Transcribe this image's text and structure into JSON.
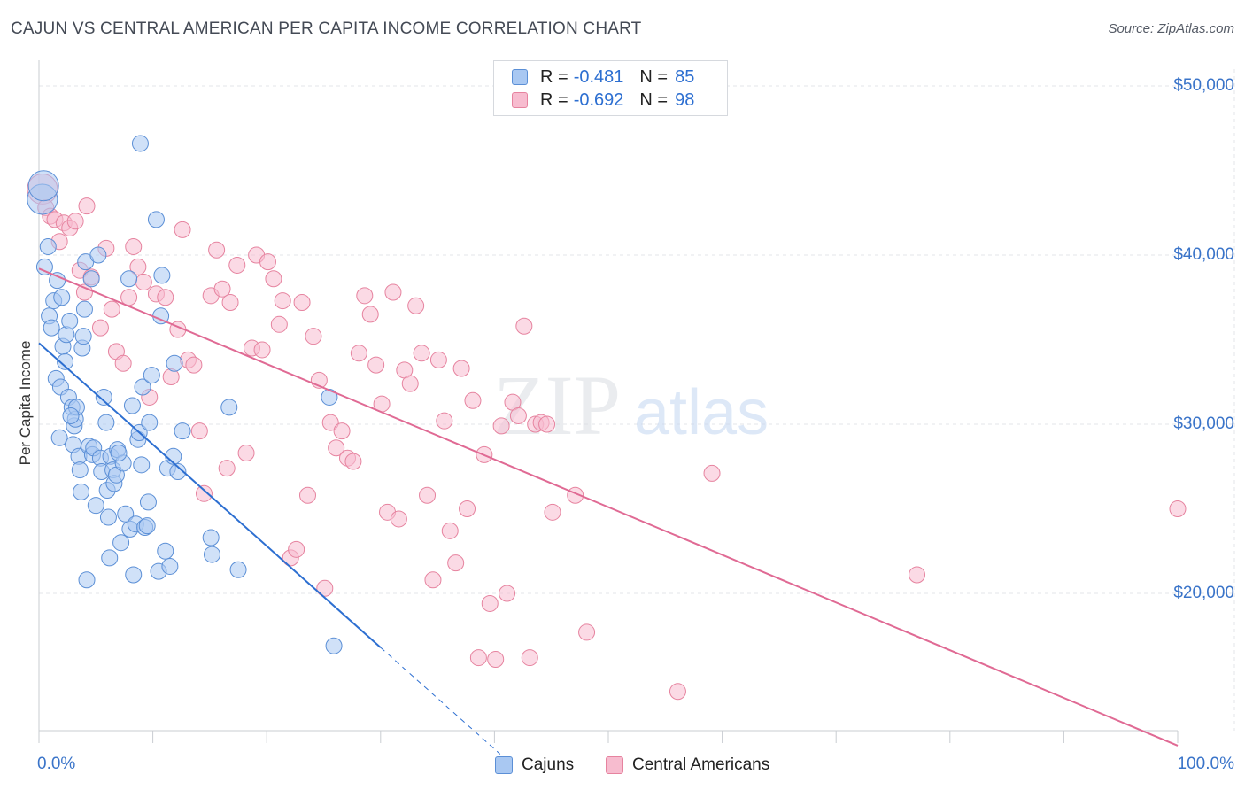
{
  "header": {
    "title": "CAJUN VS CENTRAL AMERICAN PER CAPITA INCOME CORRELATION CHART",
    "source": "Source: ZipAtlas.com"
  },
  "watermark": {
    "zip": "ZIP",
    "atlas": "atlas"
  },
  "colors": {
    "blue_fill": "#a9c8f2",
    "blue_stroke": "#5b8fd6",
    "blue_line": "#2d6fd1",
    "pink_fill": "#f7bccf",
    "pink_stroke": "#e6839f",
    "pink_line": "#e06a94",
    "grid": "#e3e5e8",
    "tick_text": "#3a74c9"
  },
  "legend": {
    "rows": [
      {
        "r_label": "R =",
        "r_value": "-0.481",
        "n_label": "N =",
        "n_value": "85"
      },
      {
        "r_label": "R =",
        "r_value": "-0.692",
        "n_label": "N =",
        "n_value": "98"
      }
    ]
  },
  "bottom_legend": {
    "series0": "Cajuns",
    "series1": "Central Americans"
  },
  "axes": {
    "ylabel": "Per Capita Income",
    "x_ticks": [
      "0.0%",
      "100.0%"
    ],
    "y_ticks": [
      "$50,000",
      "$40,000",
      "$30,000",
      "$20,000"
    ]
  },
  "chart_data": {
    "type": "scatter",
    "title": "CAJUN VS CENTRAL AMERICAN PER CAPITA INCOME CORRELATION CHART",
    "xlabel": "",
    "ylabel": "Per Capita Income",
    "xlim": [
      0,
      100
    ],
    "ylim": [
      10000,
      51000
    ],
    "grid": true,
    "legend_position": "top-center",
    "series": [
      {
        "name": "Cajuns",
        "color": "#5b8fd6",
        "r": -0.481,
        "n": 85,
        "trend": {
          "x0": 0,
          "y0": 34800,
          "x1": 30,
          "y1": 16800,
          "dash_to_x": 40.5
        },
        "points": [
          [
            0.3,
            43300
          ],
          [
            0.4,
            44100
          ],
          [
            0.5,
            39300
          ],
          [
            0.8,
            40500
          ],
          [
            0.9,
            36400
          ],
          [
            1.1,
            35700
          ],
          [
            1.3,
            37300
          ],
          [
            1.5,
            32700
          ],
          [
            1.6,
            38500
          ],
          [
            1.8,
            29200
          ],
          [
            1.9,
            32200
          ],
          [
            2.0,
            37500
          ],
          [
            2.1,
            34600
          ],
          [
            2.3,
            33700
          ],
          [
            2.4,
            35300
          ],
          [
            2.6,
            31600
          ],
          [
            2.7,
            36100
          ],
          [
            2.9,
            31000
          ],
          [
            3.0,
            28800
          ],
          [
            3.1,
            29900
          ],
          [
            3.2,
            30300
          ],
          [
            3.3,
            31000
          ],
          [
            3.5,
            28100
          ],
          [
            3.6,
            27300
          ],
          [
            3.7,
            26000
          ],
          [
            3.8,
            34500
          ],
          [
            3.9,
            35200
          ],
          [
            4.1,
            39600
          ],
          [
            4.2,
            20800
          ],
          [
            4.4,
            28700
          ],
          [
            4.6,
            38600
          ],
          [
            4.7,
            28200
          ],
          [
            4.8,
            28600
          ],
          [
            5.0,
            25200
          ],
          [
            5.2,
            40000
          ],
          [
            5.4,
            28000
          ],
          [
            5.5,
            27200
          ],
          [
            5.7,
            31600
          ],
          [
            5.9,
            30100
          ],
          [
            6.0,
            26100
          ],
          [
            6.2,
            22100
          ],
          [
            6.3,
            28100
          ],
          [
            6.5,
            27300
          ],
          [
            6.6,
            26500
          ],
          [
            6.8,
            27000
          ],
          [
            6.9,
            28500
          ],
          [
            7.2,
            23000
          ],
          [
            7.4,
            27700
          ],
          [
            7.6,
            24700
          ],
          [
            7.9,
            38600
          ],
          [
            8.0,
            23800
          ],
          [
            8.2,
            31100
          ],
          [
            8.3,
            21100
          ],
          [
            8.5,
            24100
          ],
          [
            8.7,
            29100
          ],
          [
            8.8,
            29500
          ],
          [
            8.9,
            46600
          ],
          [
            9.1,
            32200
          ],
          [
            9.3,
            23900
          ],
          [
            9.5,
            24000
          ],
          [
            9.6,
            25400
          ],
          [
            9.7,
            30100
          ],
          [
            9.9,
            32900
          ],
          [
            10.3,
            42100
          ],
          [
            10.5,
            21300
          ],
          [
            10.7,
            36400
          ],
          [
            10.8,
            38800
          ],
          [
            11.1,
            22500
          ],
          [
            11.3,
            27400
          ],
          [
            11.5,
            21600
          ],
          [
            11.8,
            28100
          ],
          [
            11.9,
            33600
          ],
          [
            12.2,
            27200
          ],
          [
            12.6,
            29600
          ],
          [
            15.1,
            23300
          ],
          [
            15.2,
            22300
          ],
          [
            17.5,
            21400
          ],
          [
            16.7,
            31000
          ],
          [
            25.5,
            31600
          ],
          [
            25.9,
            16900
          ],
          [
            4.0,
            36800
          ],
          [
            2.8,
            30500
          ],
          [
            6.1,
            24500
          ],
          [
            7.0,
            28300
          ],
          [
            9.0,
            27600
          ]
        ]
      },
      {
        "name": "Central Americans",
        "color": "#e6839f",
        "r": -0.692,
        "n": 98,
        "trend": {
          "x0": 0,
          "y0": 39200,
          "x1": 100,
          "y1": 11000
        },
        "points": [
          [
            0.3,
            43900
          ],
          [
            0.6,
            42800
          ],
          [
            1.0,
            42300
          ],
          [
            1.4,
            42100
          ],
          [
            1.8,
            40800
          ],
          [
            2.2,
            41900
          ],
          [
            2.7,
            41600
          ],
          [
            3.2,
            42000
          ],
          [
            3.6,
            39100
          ],
          [
            4.0,
            37800
          ],
          [
            4.2,
            42900
          ],
          [
            4.6,
            38700
          ],
          [
            5.4,
            35700
          ],
          [
            5.9,
            40400
          ],
          [
            6.4,
            36800
          ],
          [
            6.8,
            34300
          ],
          [
            7.4,
            33600
          ],
          [
            7.9,
            37500
          ],
          [
            8.3,
            40500
          ],
          [
            8.7,
            39300
          ],
          [
            9.2,
            38400
          ],
          [
            9.7,
            31600
          ],
          [
            10.3,
            37700
          ],
          [
            11.1,
            37500
          ],
          [
            11.6,
            32800
          ],
          [
            12.2,
            35600
          ],
          [
            12.6,
            41500
          ],
          [
            13.1,
            33800
          ],
          [
            13.6,
            33500
          ],
          [
            14.1,
            29600
          ],
          [
            14.5,
            25900
          ],
          [
            15.1,
            37600
          ],
          [
            15.6,
            40300
          ],
          [
            16.1,
            38000
          ],
          [
            16.5,
            27400
          ],
          [
            16.8,
            37200
          ],
          [
            17.4,
            39400
          ],
          [
            18.2,
            28300
          ],
          [
            18.7,
            34500
          ],
          [
            19.1,
            40000
          ],
          [
            19.6,
            34400
          ],
          [
            20.1,
            39600
          ],
          [
            20.6,
            38600
          ],
          [
            21.1,
            35900
          ],
          [
            21.4,
            37300
          ],
          [
            22.1,
            22100
          ],
          [
            22.6,
            22600
          ],
          [
            23.1,
            37200
          ],
          [
            23.6,
            25800
          ],
          [
            24.1,
            35200
          ],
          [
            24.6,
            32600
          ],
          [
            25.1,
            20300
          ],
          [
            25.6,
            30100
          ],
          [
            26.1,
            28600
          ],
          [
            26.6,
            29600
          ],
          [
            27.1,
            28000
          ],
          [
            27.6,
            27800
          ],
          [
            28.1,
            34200
          ],
          [
            28.6,
            37600
          ],
          [
            29.1,
            36500
          ],
          [
            29.6,
            33500
          ],
          [
            30.1,
            31200
          ],
          [
            30.6,
            24800
          ],
          [
            31.1,
            37800
          ],
          [
            31.6,
            24400
          ],
          [
            32.1,
            33200
          ],
          [
            32.6,
            32400
          ],
          [
            33.1,
            37000
          ],
          [
            33.6,
            34200
          ],
          [
            34.1,
            25800
          ],
          [
            34.6,
            20800
          ],
          [
            35.1,
            33800
          ],
          [
            35.6,
            30200
          ],
          [
            36.1,
            23700
          ],
          [
            36.6,
            21800
          ],
          [
            37.1,
            33300
          ],
          [
            37.6,
            25000
          ],
          [
            38.1,
            31400
          ],
          [
            38.6,
            16200
          ],
          [
            39.1,
            28200
          ],
          [
            39.6,
            19400
          ],
          [
            40.1,
            16100
          ],
          [
            40.6,
            29900
          ],
          [
            41.1,
            20000
          ],
          [
            41.6,
            31300
          ],
          [
            42.1,
            30500
          ],
          [
            42.6,
            35800
          ],
          [
            43.1,
            16200
          ],
          [
            43.6,
            30000
          ],
          [
            44.1,
            30100
          ],
          [
            44.6,
            30000
          ],
          [
            45.1,
            24800
          ],
          [
            47.1,
            25800
          ],
          [
            48.1,
            17700
          ],
          [
            56.1,
            14200
          ],
          [
            59.1,
            27100
          ],
          [
            77.1,
            21100
          ],
          [
            100.0,
            25000
          ]
        ]
      }
    ]
  }
}
